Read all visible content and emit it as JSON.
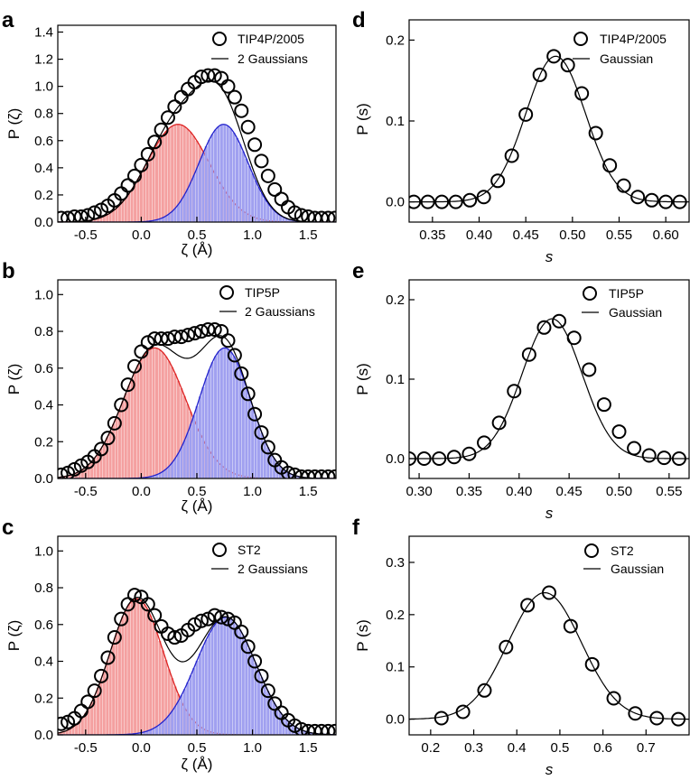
{
  "chart_data": [
    {
      "panel": "a",
      "type": "scatter",
      "xlabel": "ζ (Å)",
      "ylabel": "P (ζ)",
      "xlim": [
        -0.75,
        1.75
      ],
      "ylim": [
        0,
        1.45
      ],
      "xticks": [
        -0.5,
        0.0,
        0.5,
        1.0,
        1.5
      ],
      "xtick_labels": [
        "-0.5",
        "0.0",
        "0.5",
        "1.0",
        "1.5"
      ],
      "yticks": [
        0,
        0.2,
        0.4,
        0.6,
        0.8,
        1.0,
        1.2,
        1.4
      ],
      "ytick_labels": [
        "0.0",
        "0.2",
        "0.4",
        "0.6",
        "0.8",
        "1.0",
        "1.2",
        "1.4"
      ],
      "legend": [
        "TIP4P/2005",
        "2 Gaussians"
      ],
      "gaussians": [
        {
          "name": "Gaussian 1",
          "color": "#dd2222",
          "fill": "#f4a0a0",
          "amplitude": 0.72,
          "mean": 0.33,
          "sigma": 0.28
        },
        {
          "name": "Gaussian 2",
          "color": "#2222cc",
          "fill": "#a0a0f0",
          "amplitude": 0.72,
          "mean": 0.74,
          "sigma": 0.22
        }
      ],
      "points_x": [
        -0.72,
        -0.66,
        -0.6,
        -0.54,
        -0.48,
        -0.42,
        -0.36,
        -0.3,
        -0.24,
        -0.18,
        -0.12,
        -0.06,
        0.0,
        0.06,
        0.12,
        0.18,
        0.24,
        0.3,
        0.36,
        0.42,
        0.48,
        0.54,
        0.6,
        0.66,
        0.72,
        0.78,
        0.84,
        0.9,
        0.96,
        1.02,
        1.08,
        1.14,
        1.2,
        1.26,
        1.32,
        1.38,
        1.44,
        1.5,
        1.56,
        1.62,
        1.68,
        1.74
      ],
      "points_y": [
        0.03,
        0.03,
        0.04,
        0.04,
        0.05,
        0.07,
        0.09,
        0.12,
        0.16,
        0.21,
        0.27,
        0.34,
        0.42,
        0.5,
        0.59,
        0.68,
        0.77,
        0.85,
        0.92,
        0.98,
        1.03,
        1.07,
        1.08,
        1.08,
        1.06,
        1.0,
        0.92,
        0.82,
        0.7,
        0.57,
        0.45,
        0.34,
        0.24,
        0.17,
        0.11,
        0.07,
        0.05,
        0.04,
        0.03,
        0.03,
        0.03,
        0.03
      ]
    },
    {
      "panel": "b",
      "type": "scatter",
      "xlabel": "ζ (Å)",
      "ylabel": "P (ζ)",
      "xlim": [
        -0.75,
        1.75
      ],
      "ylim": [
        0,
        1.08
      ],
      "xticks": [
        -0.5,
        0.0,
        0.5,
        1.0,
        1.5
      ],
      "xtick_labels": [
        "-0.5",
        "0.0",
        "0.5",
        "1.0",
        "1.5"
      ],
      "yticks": [
        0,
        0.2,
        0.4,
        0.6,
        0.8,
        1.0
      ],
      "ytick_labels": [
        "0.0",
        "0.2",
        "0.4",
        "0.6",
        "0.8",
        "1.0"
      ],
      "legend": [
        "TIP5P",
        "2 Gaussians"
      ],
      "gaussians": [
        {
          "name": "Gaussian 1",
          "color": "#dd2222",
          "fill": "#f4a0a0",
          "amplitude": 0.71,
          "mean": 0.12,
          "sigma": 0.28
        },
        {
          "name": "Gaussian 2",
          "color": "#2222cc",
          "fill": "#a0a0f0",
          "amplitude": 0.71,
          "mean": 0.75,
          "sigma": 0.23
        }
      ],
      "points_x": [
        -0.72,
        -0.66,
        -0.6,
        -0.54,
        -0.48,
        -0.42,
        -0.36,
        -0.3,
        -0.24,
        -0.18,
        -0.12,
        -0.06,
        0.0,
        0.06,
        0.12,
        0.18,
        0.24,
        0.3,
        0.36,
        0.42,
        0.48,
        0.54,
        0.6,
        0.66,
        0.72,
        0.78,
        0.84,
        0.9,
        0.96,
        1.02,
        1.08,
        1.14,
        1.2,
        1.26,
        1.32,
        1.38,
        1.44,
        1.5,
        1.56,
        1.62,
        1.68,
        1.74
      ],
      "points_y": [
        0.02,
        0.03,
        0.05,
        0.07,
        0.09,
        0.12,
        0.16,
        0.22,
        0.3,
        0.4,
        0.51,
        0.61,
        0.69,
        0.74,
        0.76,
        0.76,
        0.76,
        0.77,
        0.77,
        0.78,
        0.79,
        0.8,
        0.81,
        0.81,
        0.8,
        0.75,
        0.67,
        0.57,
        0.46,
        0.35,
        0.25,
        0.17,
        0.1,
        0.06,
        0.03,
        0.02,
        0.01,
        0.01,
        0.01,
        0.01,
        0.01,
        0.01
      ]
    },
    {
      "panel": "c",
      "type": "scatter",
      "xlabel": "ζ (Å)",
      "ylabel": "P (ζ)",
      "xlim": [
        -0.75,
        1.75
      ],
      "ylim": [
        0,
        1.08
      ],
      "xticks": [
        -0.5,
        0.0,
        0.5,
        1.0,
        1.5
      ],
      "xtick_labels": [
        "-0.5",
        "0.0",
        "0.5",
        "1.0",
        "1.5"
      ],
      "yticks": [
        0,
        0.2,
        0.4,
        0.6,
        0.8,
        1.0
      ],
      "ytick_labels": [
        "0.0",
        "0.2",
        "0.4",
        "0.6",
        "0.8",
        "1.0"
      ],
      "legend": [
        "ST2",
        "2 Gaussians"
      ],
      "gaussians": [
        {
          "name": "Gaussian 1",
          "color": "#dd2222",
          "fill": "#f4a0a0",
          "amplitude": 0.74,
          "mean": -0.04,
          "sigma": 0.24
        },
        {
          "name": "Gaussian 2",
          "color": "#2222cc",
          "fill": "#a0a0f0",
          "amplitude": 0.64,
          "mean": 0.76,
          "sigma": 0.27
        }
      ],
      "points_x": [
        -0.72,
        -0.66,
        -0.6,
        -0.54,
        -0.48,
        -0.42,
        -0.36,
        -0.3,
        -0.24,
        -0.18,
        -0.12,
        -0.06,
        0.0,
        0.06,
        0.12,
        0.18,
        0.24,
        0.3,
        0.36,
        0.42,
        0.48,
        0.54,
        0.6,
        0.66,
        0.72,
        0.78,
        0.84,
        0.9,
        0.96,
        1.02,
        1.08,
        1.14,
        1.2,
        1.26,
        1.32,
        1.38,
        1.44,
        1.5,
        1.56,
        1.62,
        1.68,
        1.74
      ],
      "points_y": [
        0.06,
        0.07,
        0.09,
        0.13,
        0.18,
        0.24,
        0.32,
        0.42,
        0.53,
        0.63,
        0.71,
        0.76,
        0.75,
        0.71,
        0.65,
        0.59,
        0.55,
        0.53,
        0.54,
        0.57,
        0.6,
        0.62,
        0.63,
        0.65,
        0.64,
        0.63,
        0.61,
        0.56,
        0.48,
        0.4,
        0.32,
        0.24,
        0.17,
        0.12,
        0.08,
        0.05,
        0.03,
        0.02,
        0.02,
        0.02,
        0.02,
        0.02
      ]
    },
    {
      "panel": "d",
      "type": "scatter",
      "xlabel": "s",
      "ylabel": "P (s)",
      "xlim": [
        0.325,
        0.625
      ],
      "ylim": [
        -0.025,
        0.225
      ],
      "xticks": [
        0.35,
        0.4,
        0.45,
        0.5,
        0.55,
        0.6
      ],
      "xtick_labels": [
        "0.35",
        "0.40",
        "0.45",
        "0.50",
        "0.55",
        "0.60"
      ],
      "yticks": [
        0.0,
        0.1,
        0.2
      ],
      "ytick_labels": [
        "0.0",
        "0.1",
        "0.2"
      ],
      "legend": [
        "TIP4P/2005",
        "Gaussian"
      ],
      "fit": {
        "amplitude": 0.18,
        "mean": 0.482,
        "sigma": 0.032
      },
      "points_x": [
        0.33,
        0.345,
        0.36,
        0.375,
        0.39,
        0.405,
        0.42,
        0.435,
        0.45,
        0.465,
        0.48,
        0.495,
        0.51,
        0.525,
        0.54,
        0.555,
        0.57,
        0.585,
        0.6,
        0.615
      ],
      "points_y": [
        0.0,
        0.0,
        0.0,
        0.0,
        0.002,
        0.006,
        0.026,
        0.057,
        0.108,
        0.157,
        0.18,
        0.169,
        0.134,
        0.085,
        0.045,
        0.02,
        0.006,
        0.002,
        0.0,
        0.0
      ]
    },
    {
      "panel": "e",
      "type": "scatter",
      "xlabel": "s",
      "ylabel": "P (s)",
      "xlim": [
        0.29,
        0.57
      ],
      "ylim": [
        -0.025,
        0.225
      ],
      "xticks": [
        0.3,
        0.35,
        0.4,
        0.45,
        0.5,
        0.55
      ],
      "xtick_labels": [
        "0.30",
        "0.35",
        "0.40",
        "0.45",
        "0.50",
        "0.55"
      ],
      "yticks": [
        0.0,
        0.1,
        0.2
      ],
      "ytick_labels": [
        "0.0",
        "0.1",
        "0.2"
      ],
      "legend": [
        "TIP5P",
        "Gaussian"
      ],
      "fit": {
        "amplitude": 0.176,
        "mean": 0.433,
        "sigma": 0.03
      },
      "points_x": [
        0.29,
        0.305,
        0.32,
        0.335,
        0.35,
        0.365,
        0.38,
        0.395,
        0.41,
        0.425,
        0.44,
        0.455,
        0.47,
        0.485,
        0.5,
        0.515,
        0.53,
        0.545,
        0.56
      ],
      "points_y": [
        0.0,
        0.0,
        0.0,
        0.002,
        0.006,
        0.02,
        0.045,
        0.085,
        0.131,
        0.165,
        0.173,
        0.152,
        0.112,
        0.068,
        0.034,
        0.013,
        0.004,
        0.001,
        0.0
      ]
    },
    {
      "panel": "f",
      "type": "scatter",
      "xlabel": "s",
      "ylabel": "P (s)",
      "xlim": [
        0.15,
        0.8
      ],
      "ylim": [
        -0.03,
        0.35
      ],
      "xticks": [
        0.2,
        0.3,
        0.4,
        0.5,
        0.6,
        0.7
      ],
      "xtick_labels": [
        "0.2",
        "0.3",
        "0.4",
        "0.5",
        "0.6",
        "0.7"
      ],
      "yticks": [
        0.0,
        0.1,
        0.2,
        0.3
      ],
      "ytick_labels": [
        "0.0",
        "0.1",
        "0.2",
        "0.3"
      ],
      "legend": [
        "ST2",
        "Gaussian"
      ],
      "fit": {
        "amplitude": 0.242,
        "mean": 0.465,
        "sigma": 0.085
      },
      "points_x": [
        0.225,
        0.275,
        0.325,
        0.375,
        0.425,
        0.475,
        0.525,
        0.575,
        0.625,
        0.675,
        0.725,
        0.775
      ],
      "points_y": [
        0.002,
        0.014,
        0.055,
        0.138,
        0.218,
        0.242,
        0.178,
        0.105,
        0.04,
        0.011,
        0.002,
        0.0
      ]
    }
  ]
}
